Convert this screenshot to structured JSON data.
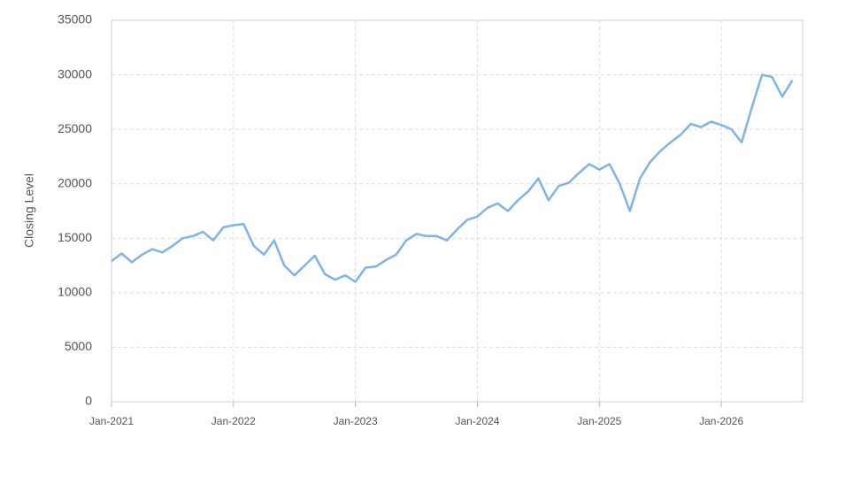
{
  "chart_data": {
    "type": "line",
    "ylabel": "Closing Level",
    "x": [
      "2021-01",
      "2021-02",
      "2021-03",
      "2021-04",
      "2021-05",
      "2021-06",
      "2021-07",
      "2021-08",
      "2021-09",
      "2021-10",
      "2021-11",
      "2021-12",
      "2022-01",
      "2022-02",
      "2022-03",
      "2022-04",
      "2022-05",
      "2022-06",
      "2022-07",
      "2022-08",
      "2022-09",
      "2022-10",
      "2022-11",
      "2022-12",
      "2023-01",
      "2023-02",
      "2023-03",
      "2023-04",
      "2023-05",
      "2023-06",
      "2023-07",
      "2023-08",
      "2023-09",
      "2023-10",
      "2023-11",
      "2023-12",
      "2024-01",
      "2024-02",
      "2024-03",
      "2024-04",
      "2024-05",
      "2024-06",
      "2024-07",
      "2024-08",
      "2024-09",
      "2024-10",
      "2024-11",
      "2024-12",
      "2025-01",
      "2025-02",
      "2025-03",
      "2025-04",
      "2025-05",
      "2025-06",
      "2025-07",
      "2025-08",
      "2025-09",
      "2025-10",
      "2025-11",
      "2025-12",
      "2026-01",
      "2026-02",
      "2026-03",
      "2026-04",
      "2026-05",
      "2026-06",
      "2026-07",
      "2026-08"
    ],
    "series": [
      {
        "name": "Closing Level",
        "color": "#7eb3e8",
        "values": [
          12900,
          13600,
          12800,
          13500,
          14000,
          13700,
          14300,
          15000,
          15200,
          15600,
          14800,
          16000,
          16200,
          16300,
          14300,
          13500,
          14800,
          12500,
          11600,
          12500,
          13400,
          11700,
          11200,
          11600,
          11000,
          12300,
          12400,
          13000,
          13500,
          14800,
          15400,
          15200,
          15200,
          14800,
          15800,
          16700,
          17000,
          17800,
          18200,
          17500,
          18500,
          19300,
          20500,
          18500,
          19800,
          20100,
          21000,
          21800,
          21300,
          21800,
          20000,
          17500,
          20500,
          22000,
          23000,
          23800,
          24500,
          25500,
          25200,
          25700,
          25400,
          25000,
          23800,
          27000,
          30000,
          29800,
          28000,
          29500
        ]
      }
    ],
    "xlim": [
      "2021-01",
      "2026-09"
    ],
    "xticks": [
      {
        "value": "2021-01",
        "label": "Jan-2021"
      },
      {
        "value": "2022-01",
        "label": "Jan-2022"
      },
      {
        "value": "2023-01",
        "label": "Jan-2023"
      },
      {
        "value": "2024-01",
        "label": "Jan-2024"
      },
      {
        "value": "2025-01",
        "label": "Jan-2025"
      },
      {
        "value": "2026-01",
        "label": "Jan-2026"
      }
    ],
    "ylim": [
      0,
      35000
    ],
    "yticks": [
      0,
      5000,
      10000,
      15000,
      20000,
      25000,
      30000,
      35000
    ],
    "grid": true
  }
}
